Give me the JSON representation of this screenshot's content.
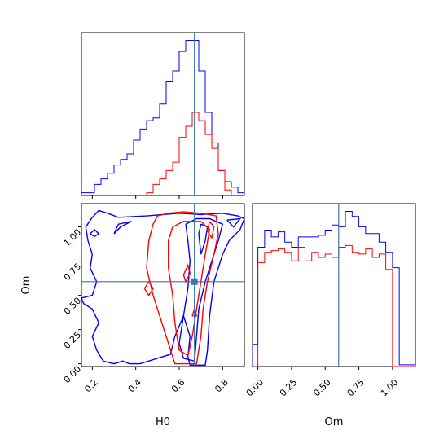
{
  "chart_data": [
    {
      "panel": "hist-H0",
      "type": "histogram-step",
      "xlim": [
        0.15,
        0.9
      ],
      "truth": 0.67,
      "colors": [
        "#0000ff",
        "#ff0000"
      ],
      "series": [
        {
          "color": "#0000ff",
          "edges": [
            0.15,
            0.18,
            0.21,
            0.24,
            0.27,
            0.3,
            0.33,
            0.36,
            0.39,
            0.42,
            0.45,
            0.48,
            0.51,
            0.54,
            0.57,
            0.6,
            0.63,
            0.66,
            0.69,
            0.72,
            0.75,
            0.78,
            0.81,
            0.84,
            0.87,
            0.9
          ],
          "counts": [
            1,
            1,
            4,
            6,
            8,
            11,
            13,
            15,
            20,
            24,
            27,
            28,
            33,
            41,
            45,
            52,
            56,
            56,
            45,
            30,
            19,
            9,
            5,
            3,
            1
          ]
        },
        {
          "color": "#ff0000",
          "edges": [
            0.45,
            0.48,
            0.51,
            0.54,
            0.57,
            0.6,
            0.63,
            0.66,
            0.69,
            0.72,
            0.75,
            0.78,
            0.81,
            0.84
          ],
          "counts": [
            1,
            4,
            6,
            9,
            12,
            21,
            25,
            30,
            27,
            22,
            17,
            9,
            2
          ]
        }
      ]
    },
    {
      "panel": "contour-H0-Om",
      "type": "contour",
      "xlabel": "H0",
      "ylabel": "Om",
      "xlim": [
        0.15,
        0.9
      ],
      "ylim": [
        -0.02,
        1.17
      ],
      "xticks": [
        "0.2",
        "0.4",
        "0.6",
        "0.8"
      ],
      "yticks": [
        "0.00",
        "0.25",
        "0.50",
        "0.75",
        "1.00"
      ],
      "truth": {
        "x": 0.67,
        "y": 0.6
      },
      "blue_contours": [
        [
          [
            0.15,
            0.48
          ],
          [
            0.2,
            0.5
          ],
          [
            0.22,
            0.6
          ],
          [
            0.19,
            0.7
          ],
          [
            0.2,
            0.8
          ],
          [
            0.18,
            0.9
          ],
          [
            0.17,
            1.0
          ],
          [
            0.2,
            1.07
          ],
          [
            0.23,
            1.12
          ],
          [
            0.27,
            1.1
          ],
          [
            0.32,
            1.07
          ],
          [
            0.45,
            1.08
          ],
          [
            0.6,
            1.1
          ],
          [
            0.7,
            1.09
          ],
          [
            0.8,
            1.1
          ],
          [
            0.87,
            1.08
          ],
          [
            0.9,
            1.06
          ],
          [
            0.88,
            0.98
          ],
          [
            0.83,
            0.9
          ],
          [
            0.8,
            0.8
          ],
          [
            0.76,
            0.6
          ],
          [
            0.74,
            0.35
          ],
          [
            0.73,
            0.1
          ],
          [
            0.72,
            -0.01
          ],
          [
            0.65,
            -0.01
          ],
          [
            0.64,
            0.05
          ],
          [
            0.65,
            0.2
          ],
          [
            0.62,
            0.35
          ],
          [
            0.58,
            0.2
          ],
          [
            0.56,
            0.07
          ],
          [
            0.42,
            0.0
          ],
          [
            0.37,
            0.0
          ],
          [
            0.34,
            0.02
          ],
          [
            0.3,
            0.0
          ],
          [
            0.25,
            0.02
          ],
          [
            0.22,
            0.1
          ],
          [
            0.2,
            0.2
          ],
          [
            0.23,
            0.3
          ],
          [
            0.2,
            0.4
          ],
          [
            0.16,
            0.44
          ],
          [
            0.15,
            0.48
          ]
        ],
        [
          [
            0.63,
            1.02
          ],
          [
            0.68,
            1.06
          ],
          [
            0.74,
            1.06
          ],
          [
            0.8,
            1.02
          ],
          [
            0.78,
            0.9
          ],
          [
            0.75,
            0.75
          ],
          [
            0.72,
            0.6
          ],
          [
            0.69,
            0.4
          ],
          [
            0.68,
            0.2
          ],
          [
            0.67,
            0.02
          ],
          [
            0.62,
            0.04
          ],
          [
            0.6,
            0.15
          ],
          [
            0.62,
            0.35
          ],
          [
            0.64,
            0.55
          ],
          [
            0.65,
            0.75
          ],
          [
            0.64,
            0.9
          ],
          [
            0.63,
            1.02
          ]
        ],
        [
          [
            0.7,
            1.02
          ],
          [
            0.73,
            1.0
          ],
          [
            0.72,
            0.9
          ],
          [
            0.7,
            0.8
          ],
          [
            0.69,
            0.95
          ],
          [
            0.7,
            1.02
          ]
        ],
        [
          [
            0.19,
            0.95
          ],
          [
            0.21,
            0.93
          ],
          [
            0.23,
            0.95
          ],
          [
            0.21,
            0.98
          ],
          [
            0.19,
            0.95
          ]
        ],
        [
          [
            0.82,
            1.05
          ],
          [
            0.88,
            1.06
          ],
          [
            0.85,
            1.0
          ],
          [
            0.82,
            1.05
          ]
        ],
        [
          [
            0.3,
            0.95
          ],
          [
            0.33,
            1.0
          ],
          [
            0.38,
            1.04
          ],
          [
            0.32,
            1.02
          ],
          [
            0.3,
            0.95
          ]
        ]
      ],
      "red_contours": [
        [
          [
            0.5,
            1.08
          ],
          [
            0.55,
            1.1
          ],
          [
            0.62,
            1.11
          ],
          [
            0.7,
            1.1
          ],
          [
            0.77,
            1.08
          ],
          [
            0.78,
            0.95
          ],
          [
            0.76,
            0.8
          ],
          [
            0.73,
            0.6
          ],
          [
            0.71,
            0.4
          ],
          [
            0.7,
            0.2
          ],
          [
            0.68,
            0.0
          ],
          [
            0.58,
            0.0
          ],
          [
            0.55,
            0.15
          ],
          [
            0.52,
            0.3
          ],
          [
            0.48,
            0.5
          ],
          [
            0.45,
            0.7
          ],
          [
            0.46,
            0.9
          ],
          [
            0.48,
            1.02
          ],
          [
            0.5,
            1.08
          ]
        ],
        [
          [
            0.57,
            1.0
          ],
          [
            0.62,
            1.04
          ],
          [
            0.7,
            1.04
          ],
          [
            0.74,
            0.98
          ],
          [
            0.72,
            0.8
          ],
          [
            0.7,
            0.6
          ],
          [
            0.68,
            0.4
          ],
          [
            0.66,
            0.2
          ],
          [
            0.64,
            0.06
          ],
          [
            0.6,
            0.1
          ],
          [
            0.58,
            0.3
          ],
          [
            0.57,
            0.5
          ],
          [
            0.55,
            0.7
          ],
          [
            0.55,
            0.9
          ],
          [
            0.57,
            1.0
          ]
        ],
        [
          [
            0.74,
            1.04
          ],
          [
            0.76,
            1.0
          ],
          [
            0.75,
            0.92
          ],
          [
            0.73,
            0.97
          ],
          [
            0.74,
            1.04
          ]
        ],
        [
          [
            0.44,
            0.55
          ],
          [
            0.46,
            0.6
          ],
          [
            0.48,
            0.55
          ],
          [
            0.46,
            0.5
          ],
          [
            0.44,
            0.55
          ]
        ],
        [
          [
            0.62,
            0.65
          ],
          [
            0.64,
            0.72
          ],
          [
            0.65,
            0.66
          ],
          [
            0.63,
            0.6
          ],
          [
            0.62,
            0.65
          ]
        ],
        [
          [
            0.66,
            0.35
          ],
          [
            0.67,
            0.4
          ],
          [
            0.68,
            0.35
          ],
          [
            0.66,
            0.35
          ]
        ]
      ]
    },
    {
      "panel": "hist-Om",
      "type": "histogram-step",
      "xlabel": "Om",
      "xlim": [
        -0.04,
        1.17
      ],
      "xticks": [
        "0.00",
        "0.25",
        "0.50",
        "0.75",
        "1.00"
      ],
      "truth": 0.6,
      "series": [
        {
          "color": "#0000ff",
          "edges": [
            -0.04,
            0.0,
            0.05,
            0.1,
            0.15,
            0.2,
            0.25,
            0.3,
            0.35,
            0.4,
            0.45,
            0.5,
            0.55,
            0.6,
            0.65,
            0.7,
            0.75,
            0.8,
            0.85,
            0.9,
            0.95,
            1.0,
            1.05,
            1.1,
            1.17
          ],
          "counts": [
            13,
            70,
            80,
            76,
            79,
            73,
            70,
            76,
            76,
            76,
            77,
            80,
            83,
            82,
            91,
            88,
            82,
            78,
            78,
            73,
            67,
            58,
            1,
            1
          ]
        },
        {
          "color": "#ff0000",
          "edges": [
            -0.04,
            0.0,
            0.05,
            0.1,
            0.15,
            0.2,
            0.25,
            0.3,
            0.35,
            0.4,
            0.45,
            0.5,
            0.55,
            0.6,
            0.65,
            0.7,
            0.75,
            0.8,
            0.85,
            0.9,
            0.95,
            1.0,
            1.05,
            1.17
          ],
          "counts": [
            0,
            61,
            67,
            68,
            69,
            67,
            62,
            70,
            62,
            67,
            64,
            66,
            64,
            70,
            71,
            67,
            66,
            69,
            64,
            66,
            57,
            0,
            0
          ]
        }
      ]
    }
  ]
}
